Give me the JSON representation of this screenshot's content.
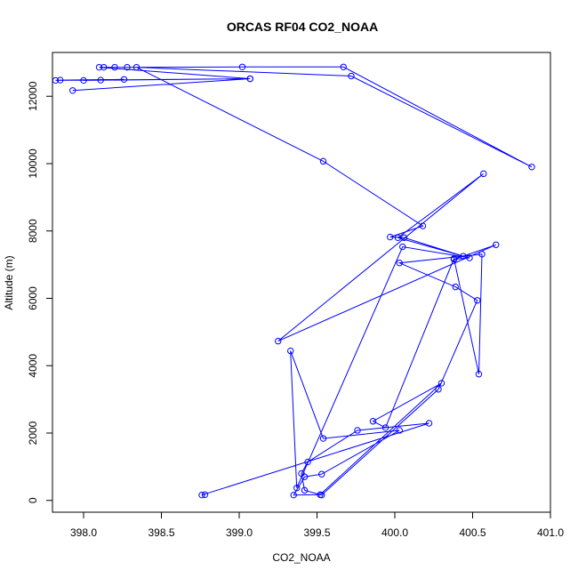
{
  "chart_data": {
    "type": "line",
    "title": "ORCAS RF04 CO2_NOAA",
    "xlabel": "CO2_NOAA",
    "ylabel": "Altitude (m)",
    "xlim": [
      397.8,
      401.0
    ],
    "ylim": [
      -350,
      13300
    ],
    "xticks": [
      398.0,
      398.5,
      399.0,
      399.5,
      400.0,
      400.5,
      401.0
    ],
    "xtick_labels": [
      "398.0",
      "398.5",
      "399.0",
      "399.5",
      "400.0",
      "400.5",
      "401.0"
    ],
    "yticks": [
      0,
      2000,
      4000,
      6000,
      8000,
      10000,
      12000
    ],
    "ytick_labels": [
      "0",
      "2000",
      "4000",
      "6000",
      "8000",
      "10000",
      "12000"
    ],
    "grid": false,
    "legend": "none",
    "color": "#0000ff",
    "marker": "open-circle",
    "series": [
      {
        "x": [
          398.78,
          398.76,
          400.22,
          399.76,
          399.44,
          399.4,
          399.42,
          399.53,
          400.28,
          400.53,
          400.39,
          400.03,
          400.56,
          400.54,
          400.38,
          399.94,
          399.86,
          400.3,
          399.52,
          399.35,
          399.42,
          399.53,
          400.03,
          399.54,
          399.33,
          399.37,
          400.05,
          400.48,
          400.38,
          400.65,
          399.25,
          400.57,
          400.02,
          400.44,
          400.06,
          399.97,
          400.18,
          399.54,
          398.34,
          399.72,
          400.88,
          399.67,
          399.02,
          398.28,
          398.2,
          398.13,
          398.1,
          399.07,
          398.0,
          398.11,
          398.26,
          397.85,
          397.82,
          399.07,
          397.93
        ],
        "y": [
          170,
          160,
          2290,
          2080,
          1140,
          800,
          300,
          160,
          3300,
          5940,
          6340,
          7050,
          7310,
          3750,
          7180,
          2160,
          2350,
          3480,
          170,
          160,
          700,
          780,
          2080,
          1840,
          4440,
          370,
          7530,
          7200,
          7160,
          7590,
          4730,
          9700,
          7800,
          7250,
          7800,
          7820,
          8150,
          10070,
          12860,
          12600,
          9900,
          12870,
          12870,
          12860,
          12860,
          12860,
          12860,
          12520,
          12470,
          12480,
          12500,
          12480,
          12470,
          12520,
          12170
        ]
      }
    ]
  }
}
